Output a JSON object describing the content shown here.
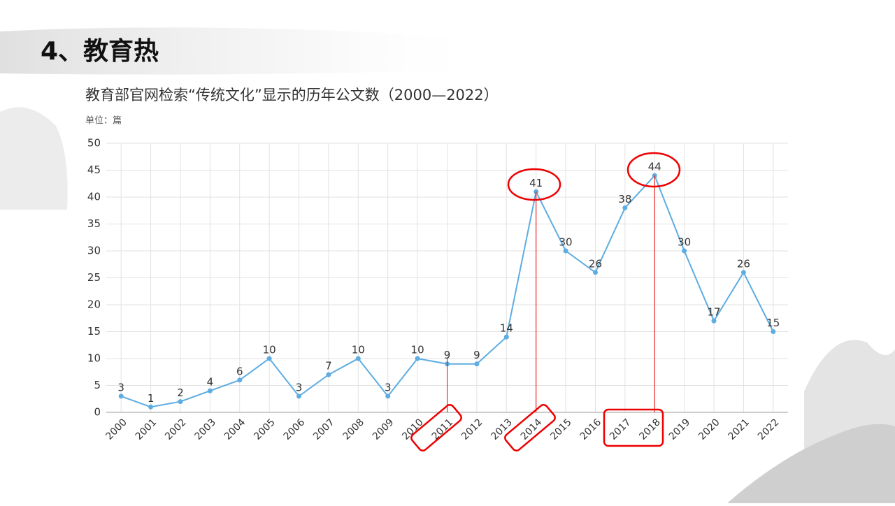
{
  "slide_title": "4、教育热",
  "chart_data": {
    "type": "line",
    "title": "教育部官网检索“传统文化”显示的历年公文数（2000—2022）",
    "unit_label": "单位：篇",
    "categories": [
      "2000",
      "2001",
      "2002",
      "2003",
      "2004",
      "2005",
      "2006",
      "2007",
      "2008",
      "2009",
      "2010",
      "2011",
      "2012",
      "2013",
      "2014",
      "2015",
      "2016",
      "2017",
      "2018",
      "2019",
      "2020",
      "2021",
      "2022"
    ],
    "values": [
      3,
      1,
      2,
      4,
      6,
      10,
      3,
      7,
      10,
      3,
      10,
      9,
      9,
      14,
      41,
      30,
      26,
      38,
      44,
      30,
      17,
      26,
      15
    ],
    "color": "#5dade2",
    "ylim": [
      0,
      50
    ],
    "yticks": [
      0,
      5,
      10,
      15,
      20,
      25,
      30,
      35,
      40,
      45,
      50
    ],
    "grid": true
  }
}
